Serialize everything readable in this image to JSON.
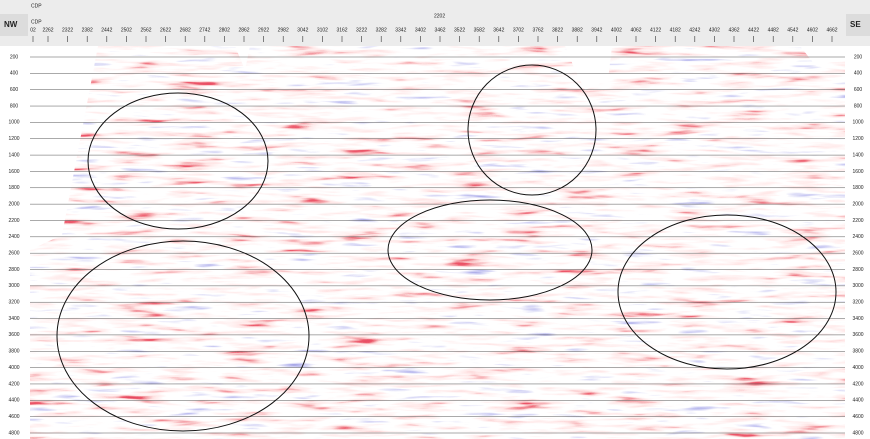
{
  "header": {
    "left_side": "NW",
    "right_side": "SE",
    "axis_label_1": "CDP",
    "axis_label_2": "CDP",
    "center_label": "2202"
  },
  "cdp_ticks": [
    "02",
    "2262",
    "2322",
    "2382",
    "2442",
    "2502",
    "2562",
    "2622",
    "2682",
    "2742",
    "2802",
    "2862",
    "2922",
    "2982",
    "3042",
    "3102",
    "3162",
    "3222",
    "3282",
    "3342",
    "3402",
    "3462",
    "3522",
    "3582",
    "3642",
    "3702",
    "3762",
    "3822",
    "3882",
    "3942",
    "4002",
    "4062",
    "4122",
    "4182",
    "4242",
    "4302",
    "4362",
    "4422",
    "4482",
    "4542",
    "4602",
    "4662"
  ],
  "depth_ticks": [
    200,
    400,
    600,
    800,
    1000,
    1200,
    1400,
    1600,
    1800,
    2000,
    2200,
    2400,
    2600,
    2800,
    3000,
    3200,
    3400,
    3600,
    3800,
    4000,
    4200,
    4400,
    4600,
    4800
  ]
}
